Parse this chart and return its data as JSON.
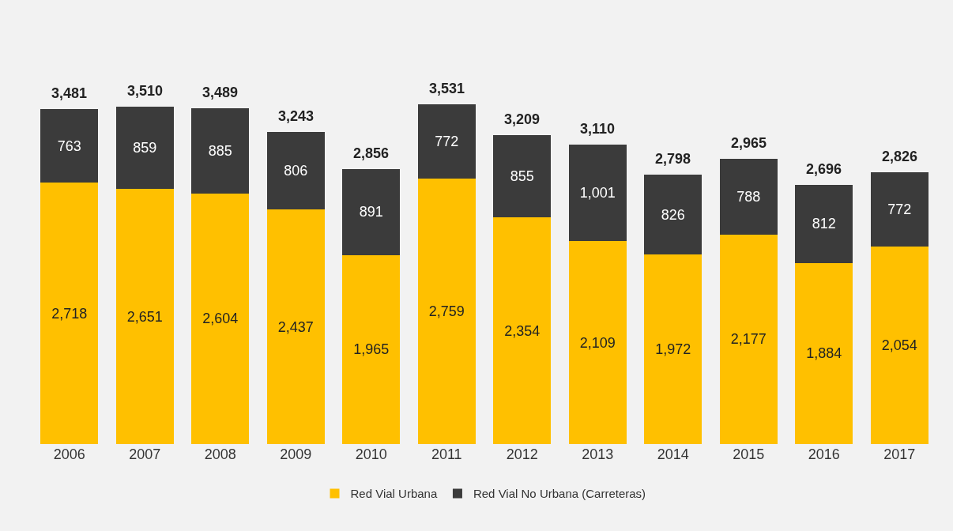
{
  "chart_data": {
    "type": "bar",
    "stacked": true,
    "legend": "bottom",
    "categories": [
      "2006",
      "2007",
      "2008",
      "2009",
      "2010",
      "2011",
      "2012",
      "2013",
      "2014",
      "2015",
      "2016",
      "2017"
    ],
    "series": [
      {
        "name": "Red Vial Urbana",
        "color": "#ffc000",
        "values": [
          2718,
          2651,
          2604,
          2437,
          1965,
          2759,
          2354,
          2109,
          1972,
          2177,
          1884,
          2054
        ],
        "value_labels": [
          "2,718",
          "2,651",
          "2,604",
          "2,437",
          "1,965",
          "2,759",
          "2,354",
          "2,109",
          "1,972",
          "2,177",
          "1,884",
          "2,054"
        ]
      },
      {
        "name": "Red Vial No Urbana (Carreteras)",
        "color": "#3b3b3b",
        "values": [
          763,
          859,
          885,
          806,
          891,
          772,
          855,
          1001,
          826,
          788,
          812,
          772
        ],
        "value_labels": [
          "763",
          "859",
          "885",
          "806",
          "891",
          "772",
          "855",
          "1,001",
          "826",
          "788",
          "812",
          "772"
        ]
      }
    ],
    "totals": [
      "3,481",
      "3,510",
      "3,489",
      "3,243",
      "2,856",
      "3,531",
      "3,209",
      "3,110",
      "2,798",
      "2,965",
      "2,696",
      "2,826"
    ]
  }
}
